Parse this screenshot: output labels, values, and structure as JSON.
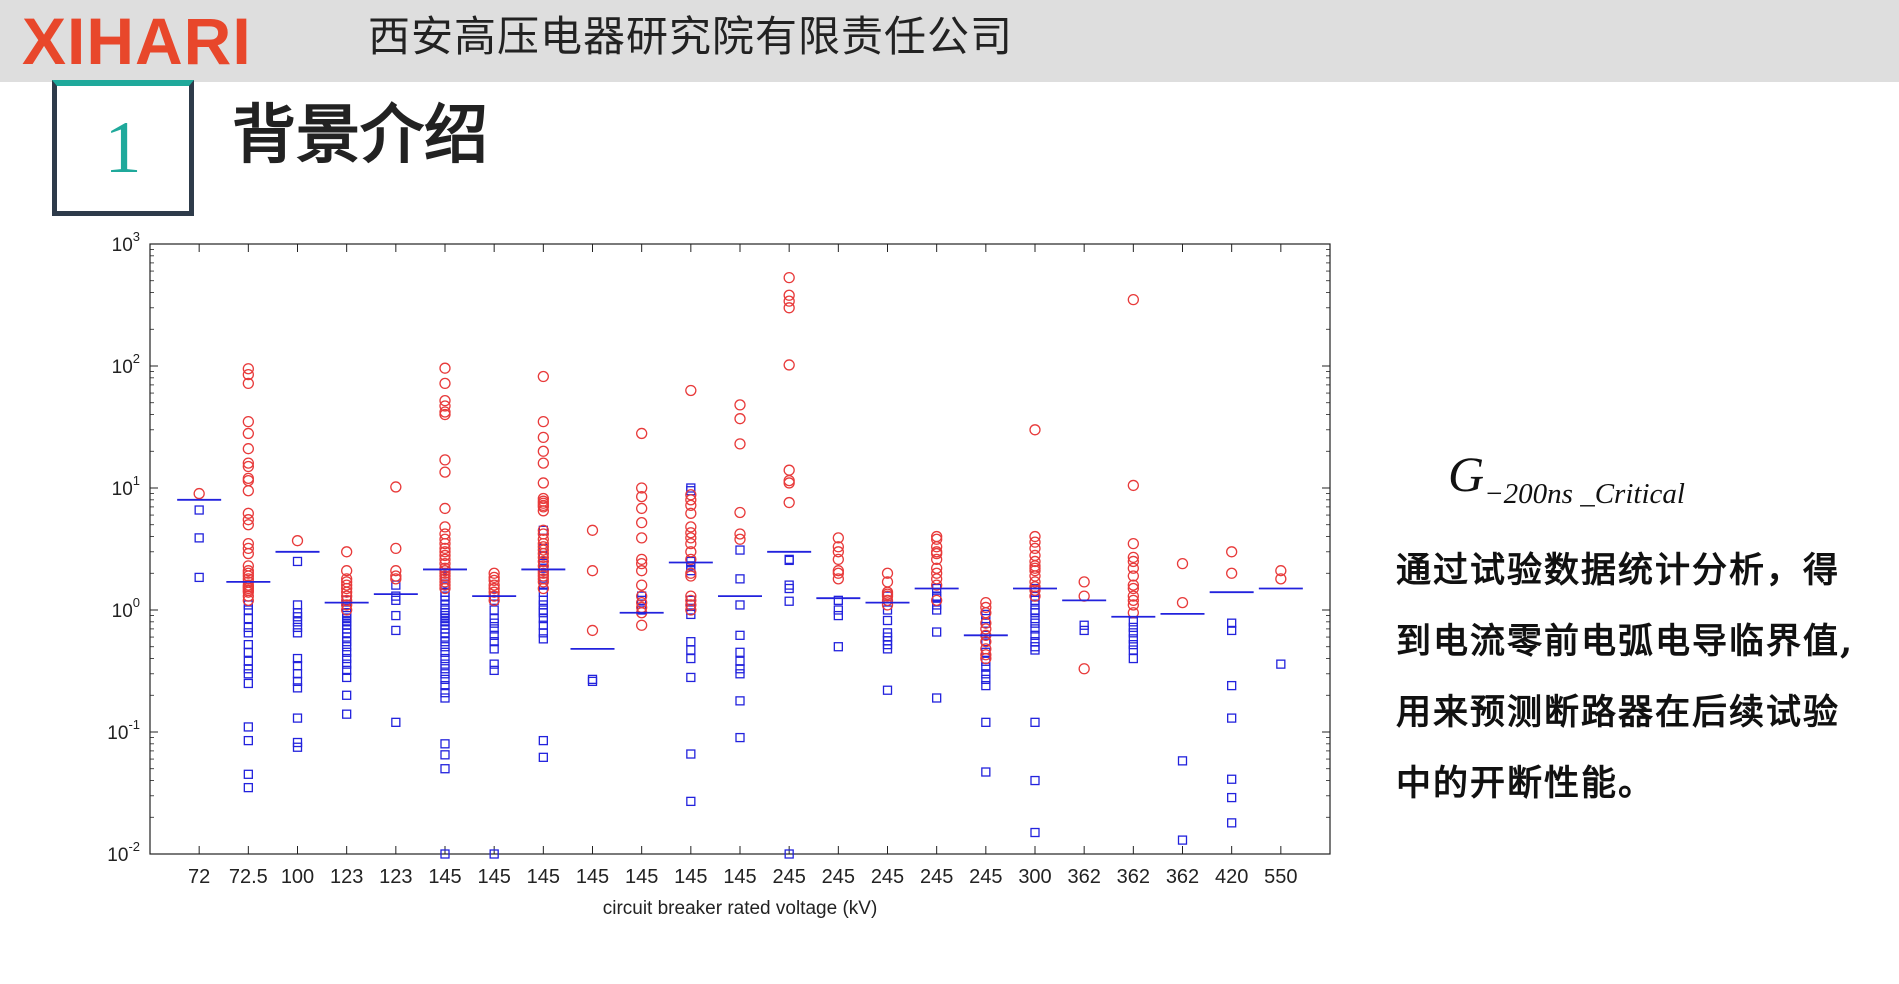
{
  "header": {
    "logo_text": "XIHARI",
    "company_name": "西安高压电器研究院有限责任公司",
    "accent_color": "#e8472b"
  },
  "section": {
    "number": "1",
    "title": "背景介绍",
    "number_color": "#1fa99b"
  },
  "formula": {
    "main": "G",
    "subscript": "−200ns _Critical"
  },
  "description": {
    "lines": [
      "通过试验数据统计分析，得",
      "到电流零前电弧电导临界值,",
      "用来预测断路器在后续试验",
      "中的开断性能。"
    ]
  },
  "chart_data": {
    "type": "scatter",
    "xlabel": "circuit breaker rated voltage (kV)",
    "ylabel": "",
    "yscale": "log",
    "ylim": [
      0.01,
      1000
    ],
    "y_ticks": [
      {
        "value": 0.01,
        "base": "10",
        "exp": "-2"
      },
      {
        "value": 0.1,
        "base": "10",
        "exp": "-1"
      },
      {
        "value": 1,
        "base": "10",
        "exp": "0"
      },
      {
        "value": 10,
        "base": "10",
        "exp": "1"
      },
      {
        "value": 100,
        "base": "10",
        "exp": "2"
      },
      {
        "value": 1000,
        "base": "10",
        "exp": "3"
      }
    ],
    "categories": [
      "72",
      "72.5",
      "100",
      "123",
      "123",
      "145",
      "145",
      "145",
      "145",
      "145",
      "145",
      "145",
      "245",
      "245",
      "245",
      "245",
      "245",
      "300",
      "362",
      "362",
      "362",
      "420",
      "550"
    ],
    "series_colors": {
      "circles": "#e83a3a",
      "squares": "#2222dd",
      "critical": "#2222dd"
    },
    "circles": [
      [
        9.0
      ],
      [
        95,
        85,
        72,
        35,
        28,
        21,
        16,
        15,
        12,
        11.5,
        9.5,
        6.2,
        5.5,
        5,
        3.5,
        3.2,
        2.9,
        2.3,
        2.1,
        2.0,
        1.9,
        1.8,
        1.7,
        1.6,
        1.55,
        1.5,
        1.45,
        1.4,
        1.3,
        1.2
      ],
      [
        3.7
      ],
      [
        3.0,
        2.1,
        1.8,
        1.7,
        1.6,
        1.5,
        1.4,
        1.3,
        1.2,
        1.1,
        1.0
      ],
      [
        10.2,
        3.2,
        2.1,
        1.9,
        1.8
      ],
      [
        96,
        72,
        52,
        47,
        42,
        40,
        17,
        13.5,
        6.8,
        4.8,
        4.2,
        3.8,
        3.5,
        3.2,
        3.0,
        2.8,
        2.6,
        2.4,
        2.2,
        2.1,
        2.0,
        1.9,
        1.8,
        1.7,
        1.6,
        1.5
      ],
      [
        2.0,
        1.85,
        1.75,
        1.6,
        1.5,
        1.4,
        1.3,
        1.2
      ],
      [
        82,
        35,
        26,
        20,
        16,
        11,
        8.2,
        7.8,
        7.5,
        7.2,
        7.0,
        6.5,
        4.5,
        4.2,
        3.8,
        3.5,
        3.3,
        3.1,
        2.9,
        2.7,
        2.5,
        2.3,
        2.1,
        2.0,
        1.9,
        1.8,
        1.7,
        1.5
      ],
      [
        4.5,
        2.1,
        0.68
      ],
      [
        28,
        10,
        8.5,
        6.8,
        5.2,
        3.9,
        2.6,
        2.4,
        2.1,
        1.6,
        1.3,
        1.15,
        1.05,
        0.95,
        0.75
      ],
      [
        63,
        8.8,
        8.0,
        7.2,
        6.2,
        4.8,
        4.3,
        3.9,
        3.5,
        3.0,
        2.6,
        2.0,
        1.9,
        1.3,
        1.2,
        1.1,
        1.0
      ],
      [
        48,
        37,
        23,
        6.3,
        4.2,
        3.8
      ],
      [
        530,
        380,
        340,
        300,
        102,
        14,
        11.5,
        11,
        7.6
      ],
      [
        3.9,
        3.3,
        3.0,
        2.6,
        2.1,
        2.0,
        1.8
      ],
      [
        2.0,
        1.7,
        1.4,
        1.35,
        1.3,
        1.2,
        1.1
      ],
      [
        4.0,
        3.8,
        3.3,
        3.0,
        2.9,
        2.6,
        2.2,
        2.0,
        1.8,
        1.6,
        1.2
      ],
      [
        1.15,
        1.05,
        0.95,
        0.78,
        0.7,
        0.62,
        0.55,
        0.48,
        0.43,
        0.4
      ],
      [
        30,
        4.0,
        3.6,
        3.2,
        2.8,
        2.5,
        2.3,
        2.2,
        2.1,
        1.9,
        1.7,
        1.55,
        1.45,
        1.3
      ],
      [
        1.7,
        1.3,
        0.33
      ],
      [
        350,
        10.5,
        3.5,
        2.7,
        2.5,
        2.2,
        1.9,
        1.6,
        1.5,
        1.3,
        1.2,
        1.1,
        0.95
      ],
      [
        2.4,
        1.15
      ],
      [
        3.0,
        2.0
      ],
      [
        2.1,
        1.8
      ]
    ],
    "squares": [
      [
        6.6,
        3.9,
        1.85
      ],
      [
        1.1,
        1.0,
        0.85,
        0.72,
        0.65,
        0.52,
        0.45,
        0.38,
        0.33,
        0.3,
        0.25,
        0.11,
        0.085,
        0.045,
        0.035
      ],
      [
        2.5,
        1.1,
        0.95,
        0.88,
        0.8,
        0.72,
        0.65,
        0.4,
        0.35,
        0.3,
        0.26,
        0.23,
        0.13,
        0.082,
        0.075
      ],
      [
        1.2,
        1.1,
        1.0,
        0.95,
        0.9,
        0.85,
        0.8,
        0.75,
        0.7,
        0.65,
        0.6,
        0.55,
        0.5,
        0.45,
        0.4,
        0.36,
        0.32,
        0.28,
        0.2,
        0.14
      ],
      [
        1.6,
        1.3,
        1.2,
        0.9,
        0.68,
        0.12
      ],
      [
        1.9,
        1.8,
        1.6,
        1.4,
        1.3,
        1.2,
        1.1,
        1.0,
        0.95,
        0.9,
        0.85,
        0.8,
        0.75,
        0.7,
        0.65,
        0.6,
        0.55,
        0.5,
        0.45,
        0.4,
        0.36,
        0.33,
        0.3,
        0.27,
        0.24,
        0.21,
        0.19,
        0.08,
        0.065,
        0.05,
        0.01
      ],
      [
        1.3,
        1.2,
        1.0,
        0.85,
        0.78,
        0.7,
        0.62,
        0.55,
        0.48,
        0.36,
        0.32,
        0.01
      ],
      [
        4.5,
        3.2,
        2.8,
        2.5,
        2.2,
        2.0,
        1.8,
        1.6,
        1.4,
        1.2,
        1.1,
        1.0,
        0.95,
        0.85,
        0.75,
        0.65,
        0.58,
        0.085,
        0.062
      ],
      [
        0.27,
        0.26
      ],
      [
        1.3,
        1.2,
        1.0
      ],
      [
        10,
        9.5,
        2.5,
        2.3,
        2.1,
        1.2,
        1.1,
        1.0,
        0.92,
        0.55,
        0.47,
        0.4,
        0.28,
        0.066,
        0.027
      ],
      [
        3.1,
        1.8,
        1.1,
        0.62,
        0.45,
        0.38,
        0.33,
        0.3,
        0.18,
        0.09
      ],
      [
        2.6,
        2.55,
        1.6,
        1.5,
        1.18,
        0.01
      ],
      [
        1.2,
        1.0,
        0.9,
        0.5
      ],
      [
        1.3,
        1.0,
        0.82,
        0.65,
        0.6,
        0.56,
        0.52,
        0.48,
        0.22
      ],
      [
        1.5,
        1.3,
        1.25,
        1.1,
        1.0,
        0.66,
        0.19
      ],
      [
        0.92,
        0.85,
        0.78,
        0.62,
        0.55,
        0.45,
        0.38,
        0.34,
        0.3,
        0.27,
        0.24,
        0.12,
        0.047
      ],
      [
        1.5,
        1.4,
        1.3,
        1.2,
        1.1,
        1.0,
        0.95,
        0.85,
        0.78,
        0.7,
        0.62,
        0.55,
        0.5,
        0.47,
        0.12,
        0.04,
        0.015
      ],
      [
        0.75,
        0.68
      ],
      [
        0.8,
        0.72,
        0.65,
        0.58,
        0.52,
        0.47,
        0.4
      ],
      [
        0.058,
        0.013
      ],
      [
        0.78,
        0.68,
        0.24,
        0.13,
        0.041,
        0.029,
        0.018
      ],
      [
        0.36
      ]
    ],
    "critical": [
      8.0,
      1.7,
      3.0,
      1.15,
      1.35,
      2.15,
      1.3,
      2.15,
      0.48,
      0.95,
      2.45,
      1.3,
      3.0,
      1.25,
      1.15,
      1.5,
      0.62,
      1.5,
      1.2,
      0.88,
      0.93,
      1.4,
      1.5
    ]
  }
}
